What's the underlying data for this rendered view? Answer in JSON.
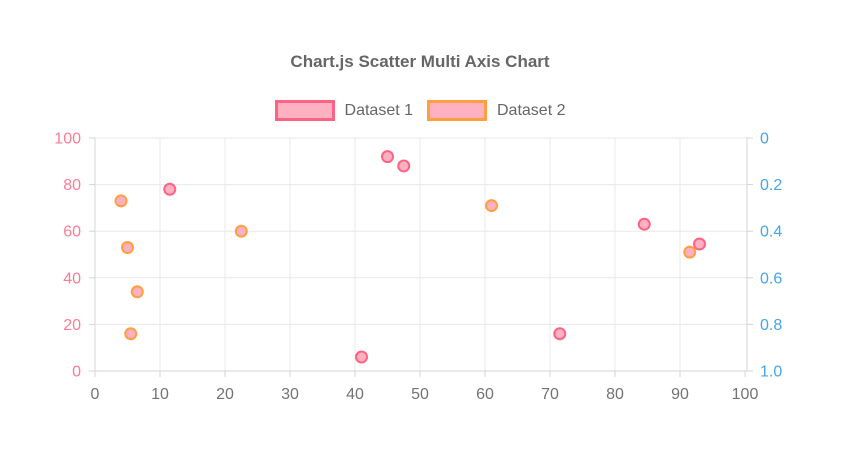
{
  "header": {
    "title": "Chart.js Scatter Multi Axis Chart",
    "title_color": "#666666"
  },
  "legend": {
    "text_color": "#666666",
    "items": [
      {
        "label": "Dataset 1",
        "swatch_fill": "#ffb1c1",
        "swatch_border": "#ff6384"
      },
      {
        "label": "Dataset 2",
        "swatch_fill": "#ffb1c1",
        "swatch_border": "#ff9f40"
      }
    ]
  },
  "chart_data": {
    "type": "scatter",
    "title": "Chart.js Scatter Multi Axis Chart",
    "x_axis": {
      "min": 0,
      "max": 100,
      "ticks": [
        0,
        10,
        20,
        30,
        40,
        50,
        60,
        70,
        80,
        90,
        100
      ],
      "tick_color": "#737373",
      "position": "bottom"
    },
    "y_axis_left": {
      "min": 0,
      "max": 100,
      "ticks": [
        0,
        20,
        40,
        60,
        80,
        100
      ],
      "tick_color": "#fb7d95",
      "position": "left",
      "reversed": false
    },
    "y_axis_right": {
      "min": 0,
      "max": 1,
      "ticks": [
        0,
        0.2,
        0.4,
        0.6,
        0.8,
        1.0
      ],
      "tick_labels": [
        "0",
        "0.2",
        "0.4",
        "0.6",
        "0.8",
        "1.0"
      ],
      "tick_color": "#45a5ec",
      "position": "right",
      "reversed": true
    },
    "grid": {
      "show": true,
      "color": "#e8e8e8",
      "border_color": "#d4d4d4"
    },
    "series": [
      {
        "name": "Dataset 1",
        "y_axis": "left",
        "point_fill": "#ffb1c1",
        "point_border": "#ff6384",
        "points": [
          {
            "x": 11.5,
            "y": 78
          },
          {
            "x": 41,
            "y": 6
          },
          {
            "x": 45,
            "y": 92
          },
          {
            "x": 47.5,
            "y": 88
          },
          {
            "x": 71.5,
            "y": 16
          },
          {
            "x": 84.5,
            "y": 63
          },
          {
            "x": 93,
            "y": 54.5
          }
        ]
      },
      {
        "name": "Dataset 2",
        "y_axis": "right",
        "point_fill": "#ffb1c1",
        "point_border": "#ff9f40",
        "points": [
          {
            "x": 4,
            "y": 0.27
          },
          {
            "x": 5,
            "y": 0.47
          },
          {
            "x": 5.5,
            "y": 0.84
          },
          {
            "x": 6.5,
            "y": 0.66
          },
          {
            "x": 22.5,
            "y": 0.4
          },
          {
            "x": 61,
            "y": 0.29
          },
          {
            "x": 91.5,
            "y": 0.49
          }
        ]
      }
    ]
  }
}
